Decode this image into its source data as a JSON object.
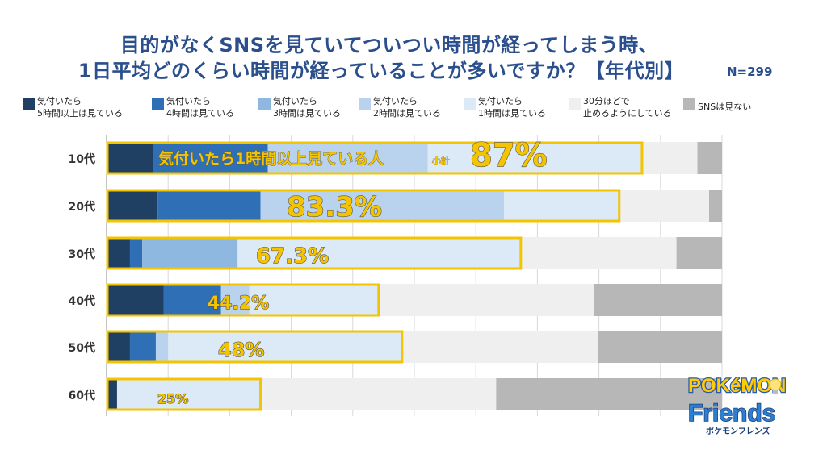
{
  "title_line1": "目的がなくSNSを見ていてついつい時間が経ってしまう時、",
  "title_line2": "1日平均どのくらい時間が経っていることが多いですか？【年代別】",
  "n_label": "N=299",
  "legend": [
    {
      "line1": "気付いたら",
      "line2": "5時間以上は見ている",
      "color": "#1f3f63"
    },
    {
      "line1": "気付いたら",
      "line2": "4時間は見ている",
      "color": "#2e6fb5"
    },
    {
      "line1": "気付いたら",
      "line2": "3時間は見ている",
      "color": "#8fb8e0"
    },
    {
      "line1": "気付いたら",
      "line2": "2時間は見ている",
      "color": "#b9d3ee"
    },
    {
      "line1": "気付いたら",
      "line2": "1時間は見ている",
      "color": "#dce9f6"
    },
    {
      "line1": "30分ほどで",
      "line2": "止めるようにしている",
      "color": "#efefef"
    },
    {
      "line1": "SNSは見ない",
      "line2": "",
      "color": "#b7b7b7"
    }
  ],
  "subtotal_label": "気付いたら1時間以上見ている人",
  "subtotal_small": "小計",
  "highlight_color": "#f5c400",
  "chart_data": {
    "type": "bar",
    "orientation": "horizontal",
    "stacked": true,
    "categories": [
      "10代",
      "20代",
      "30代",
      "40代",
      "50代",
      "60代"
    ],
    "series": [
      {
        "name": "気付いたら5時間以上は見ている",
        "values": [
          7.5,
          8.3,
          3.8,
          9.3,
          3.8,
          1.7
        ]
      },
      {
        "name": "気付いたら4時間は見ている",
        "values": [
          18.7,
          16.7,
          2.0,
          9.3,
          4.2,
          0
        ]
      },
      {
        "name": "気付いたら3時間は見ている",
        "values": [
          0,
          0,
          15.5,
          0,
          0,
          0
        ]
      },
      {
        "name": "気付いたら2時間は見ている",
        "values": [
          26.0,
          39.6,
          0,
          4.6,
          2.0,
          0
        ]
      },
      {
        "name": "気付いたら1時間は見ている",
        "values": [
          34.8,
          18.7,
          46.0,
          21.0,
          38.0,
          23.3
        ]
      },
      {
        "name": "30分ほどで止めるようにしている",
        "values": [
          9.0,
          14.6,
          25.3,
          35.0,
          31.8,
          38.3
        ]
      },
      {
        "name": "SNSは見ない",
        "values": [
          4.0,
          2.1,
          7.4,
          20.8,
          20.2,
          36.7
        ]
      }
    ],
    "subtotals": [
      "87%",
      "83.3%",
      "67.3%",
      "44.2%",
      "48%",
      "25%"
    ],
    "xlim": [
      0,
      100
    ],
    "grid": true
  }
}
